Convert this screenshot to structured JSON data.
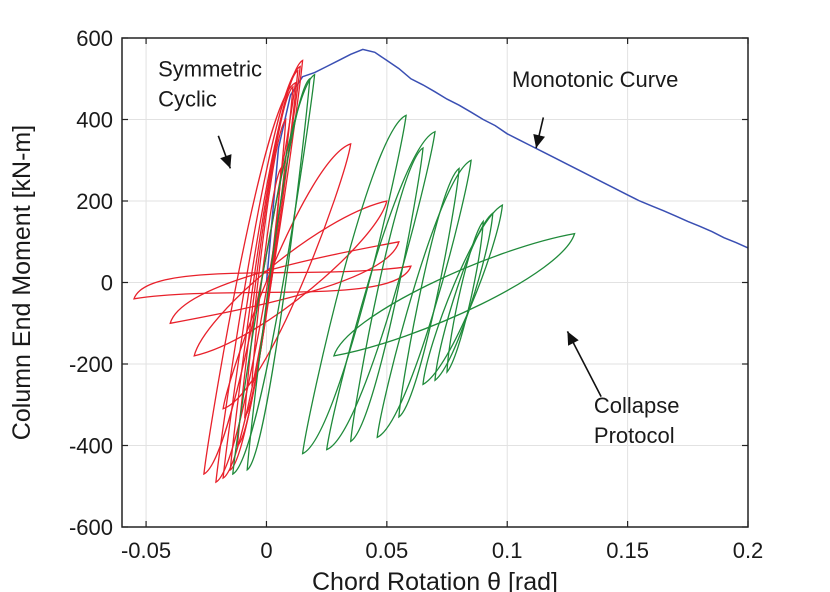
{
  "chart_data": {
    "type": "line",
    "xlabel": "Chord Rotation θ [rad]",
    "ylabel": "Column End Moment [kN-m]",
    "xlim": [
      -0.06,
      0.2
    ],
    "ylim": [
      -600,
      600
    ],
    "xticks": [
      -0.05,
      0,
      0.05,
      0.1,
      0.15,
      0.2
    ],
    "xtick_labels": [
      "-0.05",
      "0",
      "0.05",
      "0.1",
      "0.15",
      "0.2"
    ],
    "yticks": [
      -600,
      -400,
      -200,
      0,
      200,
      400,
      600
    ],
    "ytick_labels": [
      "-600",
      "-400",
      "-200",
      "0",
      "200",
      "400",
      "600"
    ],
    "grid": true,
    "annotations": [
      {
        "lines": [
          "Symmetric",
          "Cyclic"
        ],
        "text_at": [
          -0.045,
          505
        ],
        "arrow_from": [
          -0.02,
          360
        ],
        "arrow_to": [
          -0.015,
          280
        ]
      },
      {
        "lines": [
          "Monotonic Curve"
        ],
        "text_at": [
          0.102,
          480
        ],
        "arrow_from": [
          0.115,
          405
        ],
        "arrow_to": [
          0.112,
          330
        ]
      },
      {
        "lines": [
          "Collapse",
          "Protocol"
        ],
        "text_at": [
          0.136,
          -320
        ],
        "arrow_from": [
          0.139,
          -280
        ],
        "arrow_to": [
          0.125,
          -120
        ]
      }
    ],
    "series": [
      {
        "color": "#3a4fb3",
        "x": [
          0,
          0.005,
          0.01,
          0.015,
          0.02,
          0.025,
          0.03,
          0.035,
          0.04,
          0.045,
          0.05,
          0.055,
          0.06,
          0.065,
          0.07,
          0.075,
          0.08,
          0.085,
          0.09,
          0.095,
          0.1,
          0.105,
          0.11,
          0.115,
          0.12,
          0.125,
          0.13,
          0.135,
          0.14,
          0.145,
          0.15,
          0.155,
          0.16,
          0.165,
          0.17,
          0.175,
          0.18,
          0.185,
          0.19,
          0.195,
          0.2
        ],
        "values": [
          0,
          330,
          460,
          505,
          515,
          530,
          545,
          560,
          572,
          565,
          545,
          525,
          500,
          485,
          468,
          450,
          435,
          418,
          400,
          385,
          365,
          350,
          335,
          320,
          305,
          290,
          275,
          260,
          245,
          230,
          215,
          200,
          188,
          176,
          163,
          150,
          138,
          125,
          110,
          98,
          85
        ]
      },
      {
        "color": "#e8212b",
        "cycles": [
          {
            "xmin": -0.006,
            "xmax": 0.006,
            "mmin": -250,
            "mmax": 280
          },
          {
            "xmin": -0.009,
            "xmax": 0.008,
            "mmin": -330,
            "mmax": 400
          },
          {
            "xmin": -0.012,
            "xmax": 0.011,
            "mmin": -400,
            "mmax": 480
          },
          {
            "xmin": -0.015,
            "xmax": 0.013,
            "mmin": -460,
            "mmax": 520
          },
          {
            "xmin": -0.018,
            "xmax": 0.015,
            "mmin": -480,
            "mmax": 545
          },
          {
            "xmin": -0.021,
            "xmax": 0.014,
            "mmin": -490,
            "mmax": 530
          },
          {
            "xmin": -0.026,
            "xmax": 0.012,
            "mmin": -470,
            "mmax": 490
          },
          {
            "xmin": -0.018,
            "xmax": 0.035,
            "mmin": -310,
            "mmax": 340
          },
          {
            "xmin": -0.03,
            "xmax": 0.05,
            "mmin": -180,
            "mmax": 200
          },
          {
            "xmin": -0.04,
            "xmax": 0.055,
            "mmin": -100,
            "mmax": 100
          },
          {
            "xmin": -0.055,
            "xmax": 0.06,
            "mmin": -40,
            "mmax": 40
          }
        ]
      },
      {
        "color": "#1f8a3a",
        "cycles": [
          {
            "xmin": -0.014,
            "xmax": 0.02,
            "mmin": -470,
            "mmax": 510
          },
          {
            "xmin": -0.008,
            "xmax": 0.018,
            "mmin": -460,
            "mmax": 500
          },
          {
            "xmin": 0.015,
            "xmax": 0.058,
            "mmin": -420,
            "mmax": 410
          },
          {
            "xmin": 0.025,
            "xmax": 0.07,
            "mmin": -410,
            "mmax": 370
          },
          {
            "xmin": 0.035,
            "xmax": 0.065,
            "mmin": -390,
            "mmax": 330
          },
          {
            "xmin": 0.046,
            "xmax": 0.085,
            "mmin": -380,
            "mmax": 300
          },
          {
            "xmin": 0.055,
            "xmax": 0.08,
            "mmin": -330,
            "mmax": 280
          },
          {
            "xmin": 0.065,
            "xmax": 0.098,
            "mmin": -250,
            "mmax": 190
          },
          {
            "xmin": 0.07,
            "xmax": 0.094,
            "mmin": -240,
            "mmax": 170
          },
          {
            "xmin": 0.075,
            "xmax": 0.09,
            "mmin": -220,
            "mmax": 150
          },
          {
            "xmin": 0.028,
            "xmax": 0.128,
            "mmin": -180,
            "mmax": 120
          }
        ]
      }
    ]
  }
}
